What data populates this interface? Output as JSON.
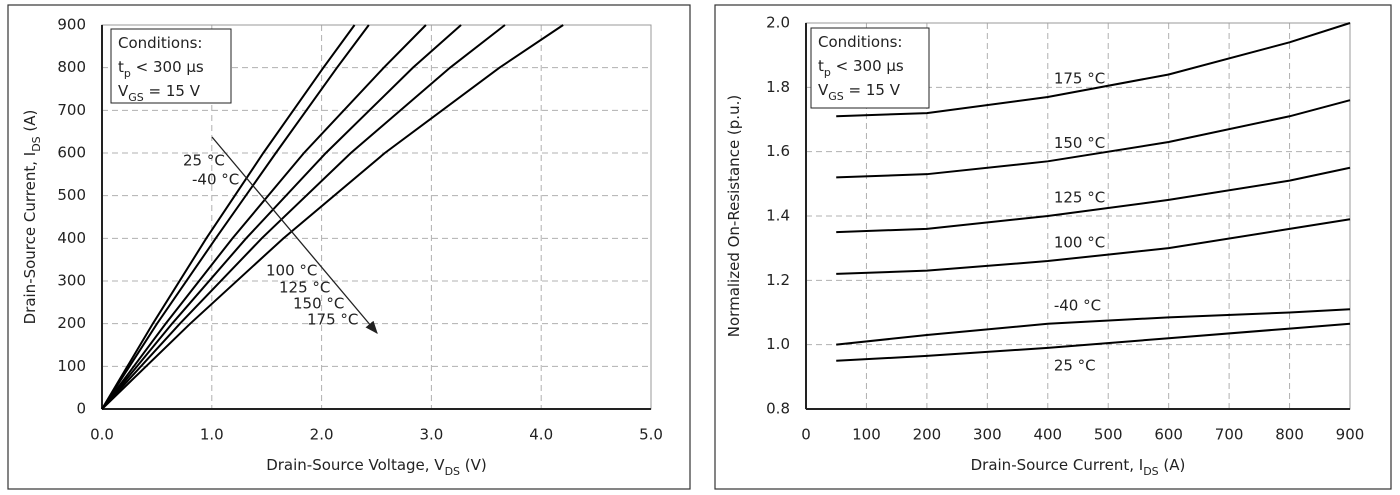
{
  "chart_data": [
    {
      "type": "line",
      "x_label": [
        {
          "t": "Drain-Source Voltage, V"
        },
        {
          "sub": "DS"
        },
        {
          "t": " (V)"
        }
      ],
      "y_label": [
        {
          "t": "Drain-Source Current, I"
        },
        {
          "sub": "DS"
        },
        {
          "t": " (A)"
        }
      ],
      "conditions": [
        [
          {
            "t": "Conditions:"
          }
        ],
        [
          {
            "t": "t"
          },
          {
            "sub": "p"
          },
          {
            "t": " < 300 µs"
          }
        ],
        [
          {
            "t": "V"
          },
          {
            "sub": "GS"
          },
          {
            "t": " = 15 V"
          }
        ]
      ],
      "xlim": [
        0,
        5
      ],
      "ylim": [
        0,
        900
      ],
      "xticks": [
        {
          "value": 0,
          "label": "0.0"
        },
        {
          "value": 1,
          "label": "1.0"
        },
        {
          "value": 2,
          "label": "2.0"
        },
        {
          "value": 3,
          "label": "3.0"
        },
        {
          "value": 4,
          "label": "4.0"
        },
        {
          "value": 5,
          "label": "5.0"
        }
      ],
      "yticks": [
        0,
        100,
        200,
        300,
        400,
        500,
        600,
        700,
        800,
        900
      ],
      "grid": true,
      "series": [
        {
          "name": "25 °C",
          "color": "#000000",
          "x": [
            0,
            0.463,
            0.95,
            1.469,
            2.016,
            2.3
          ],
          "values": [
            0,
            200,
            400,
            600,
            800,
            900
          ]
        },
        {
          "name": "-40 °C",
          "color": "#000000",
          "x": [
            0,
            0.501,
            1.036,
            1.583,
            2.14,
            2.43
          ],
          "values": [
            0,
            200,
            400,
            600,
            800,
            900
          ]
        },
        {
          "name": "100 °C",
          "color": "#000000",
          "x": [
            0,
            0.58,
            1.188,
            1.839,
            2.566,
            2.95
          ],
          "values": [
            0,
            200,
            400,
            600,
            800,
            900
          ]
        },
        {
          "name": "125 °C",
          "color": "#000000",
          "x": [
            0,
            0.638,
            1.313,
            2.039,
            2.832,
            3.27
          ],
          "values": [
            0,
            200,
            400,
            600,
            800,
            900
          ]
        },
        {
          "name": "150 °C",
          "color": "#000000",
          "x": [
            0,
            0.709,
            1.455,
            2.266,
            3.17,
            3.67
          ],
          "values": [
            0,
            200,
            400,
            600,
            800,
            900
          ]
        },
        {
          "name": "175 °C",
          "color": "#000000",
          "x": [
            0,
            0.803,
            1.652,
            2.576,
            3.62,
            4.2
          ],
          "values": [
            0,
            200,
            400,
            600,
            800,
            900
          ]
        }
      ]
    },
    {
      "type": "line",
      "x_label": [
        {
          "t": "Drain-Source Current, I"
        },
        {
          "sub": "DS"
        },
        {
          "t": " (A)"
        }
      ],
      "y_label": [
        {
          "t": "Normalized On-Resistance (p.u.)"
        }
      ],
      "conditions": [
        [
          {
            "t": "Conditions:"
          }
        ],
        [
          {
            "t": "t"
          },
          {
            "sub": "p"
          },
          {
            "t": " < 300 µs"
          }
        ],
        [
          {
            "t": "V"
          },
          {
            "sub": "GS"
          },
          {
            "t": " = 15 V"
          }
        ]
      ],
      "xlim": [
        0,
        900
      ],
      "ylim": [
        0.8,
        2.0
      ],
      "xticks": [
        0,
        100,
        200,
        300,
        400,
        500,
        600,
        700,
        800,
        900
      ],
      "yticks": [
        0.8,
        {
          "value": 1,
          "label": "1.0"
        },
        1.2,
        1.4,
        1.6,
        1.8,
        {
          "value": 2,
          "label": "2.0"
        }
      ],
      "grid": true,
      "series": [
        {
          "name": "175 °C",
          "color": "#000000",
          "x": [
            50,
            200,
            400,
            600,
            800,
            900
          ],
          "values": [
            1.71,
            1.72,
            1.77,
            1.84,
            1.94,
            2.0
          ]
        },
        {
          "name": "150 °C",
          "color": "#000000",
          "x": [
            50,
            200,
            400,
            600,
            800,
            900
          ],
          "values": [
            1.52,
            1.53,
            1.57,
            1.63,
            1.71,
            1.76
          ]
        },
        {
          "name": "125 °C",
          "color": "#000000",
          "x": [
            50,
            200,
            400,
            600,
            800,
            900
          ],
          "values": [
            1.35,
            1.36,
            1.4,
            1.45,
            1.51,
            1.55
          ]
        },
        {
          "name": "100 °C",
          "color": "#000000",
          "x": [
            50,
            200,
            400,
            600,
            800,
            900
          ],
          "values": [
            1.22,
            1.23,
            1.26,
            1.3,
            1.36,
            1.39
          ]
        },
        {
          "name": "-40 °C",
          "color": "#000000",
          "x": [
            50,
            200,
            400,
            600,
            800,
            900
          ],
          "values": [
            1.0,
            1.03,
            1.065,
            1.085,
            1.1,
            1.11
          ]
        },
        {
          "name": "25 °C",
          "color": "#000000",
          "x": [
            50,
            200,
            400,
            600,
            800,
            900
          ],
          "values": [
            0.95,
            0.965,
            0.99,
            1.02,
            1.05,
            1.065
          ]
        }
      ]
    }
  ]
}
